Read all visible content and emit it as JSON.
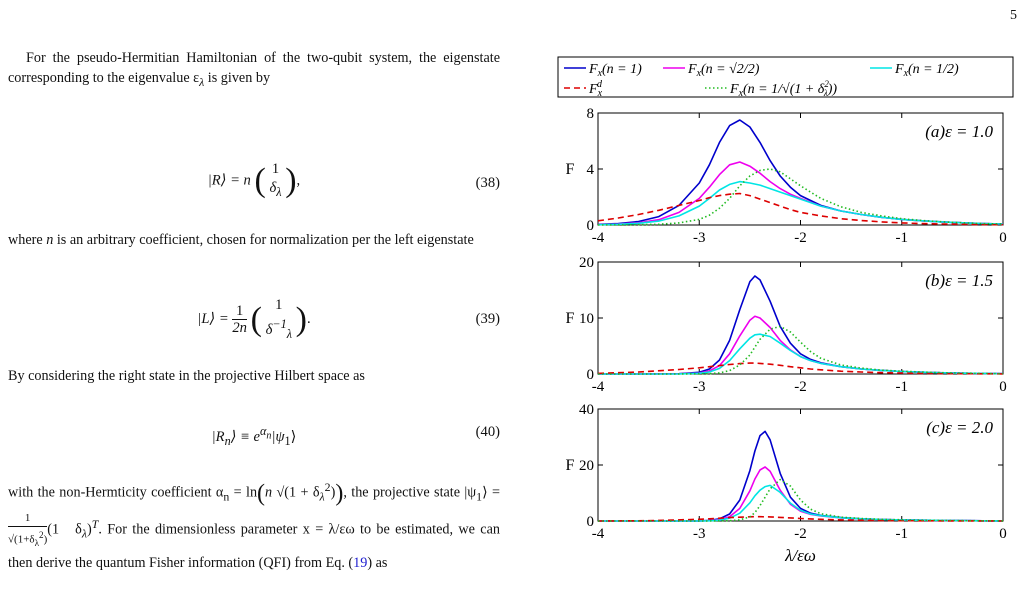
{
  "page_number": "5",
  "text": {
    "para1": "For the pseudo-Hermitian Hamiltonian of the two-qubit system, the eigenstate corresponding to the eigenvalue ε",
    "para1_sub": "λ",
    "para1_end": " is given by",
    "para2": " is an arbitrary coefficient, chosen for normalization per the left eigenstate",
    "para2_n": "n",
    "para2_where": "where ",
    "para3": "By considering the right state in the projective Hilbert space as",
    "para4a": "with the non-Hermticity coefficient α",
    "para4b": ", the projective state |ψ",
    "para4c": "For the dimensionless parameter x = λ/εω to be estimated, we can then derive the quantum Fisher information (QFI) from Eq. (",
    "para4_ref": "19",
    "para4_end": ") as"
  },
  "equations": [
    {
      "number": "(38)",
      "lhs": "|R⟩ = n",
      "vec_top": "1",
      "vec_bottom": "δ",
      "vec_sub": "λ",
      "end": ","
    },
    {
      "number": "(39)",
      "lhs": "|L⟩ =",
      "frac_top": "1",
      "frac_bottom": "2n",
      "vec_top": "1",
      "vec_bottom": "δ",
      "vec_sup": "−1",
      "vec_sub": "λ",
      "end": "."
    },
    {
      "number": "(40)",
      "content": "|R",
      "sub": "n",
      "mid": "⟩ ≡ e",
      "sup": "α",
      "supsub": "n",
      "end": "|ψ",
      "end_sub": "1",
      "close": "⟩"
    }
  ],
  "chart_data": [
    {
      "type": "line",
      "panel_label": "(a)ε = 1.0",
      "xlim": [
        -4,
        0
      ],
      "ylim": [
        0,
        8
      ],
      "xticks": [
        "-4",
        "-3",
        "-2",
        "-1",
        "0"
      ],
      "yticks": [
        "0",
        "4",
        "8"
      ],
      "ylabel": "F",
      "x": [
        -4.0,
        -3.8,
        -3.6,
        -3.4,
        -3.2,
        -3.0,
        -2.9,
        -2.8,
        -2.7,
        -2.6,
        -2.5,
        -2.4,
        -2.3,
        -2.2,
        -2.1,
        -2.0,
        -1.8,
        -1.6,
        -1.4,
        -1.2,
        -1.0,
        -0.8,
        -0.6,
        -0.4,
        -0.2,
        0.0
      ],
      "series": [
        {
          "name": "F_x(n=1)",
          "color": "#0000cc",
          "dash": "solid",
          "values": [
            0.05,
            0.1,
            0.25,
            0.6,
            1.4,
            3.0,
            4.3,
            5.9,
            7.1,
            7.5,
            7.0,
            5.9,
            4.6,
            3.5,
            2.7,
            2.1,
            1.4,
            1.0,
            0.75,
            0.55,
            0.4,
            0.3,
            0.22,
            0.16,
            0.1,
            0.07
          ]
        },
        {
          "name": "F_x(n=√2/2)",
          "color": "#ee00ee",
          "dash": "solid",
          "values": [
            0.03,
            0.07,
            0.16,
            0.38,
            0.9,
            1.9,
            2.7,
            3.6,
            4.3,
            4.5,
            4.2,
            3.7,
            3.1,
            2.6,
            2.2,
            1.9,
            1.35,
            1.0,
            0.75,
            0.55,
            0.4,
            0.3,
            0.22,
            0.16,
            0.1,
            0.07
          ]
        },
        {
          "name": "F_x(n=1/2)",
          "color": "#00e5e5",
          "dash": "solid",
          "values": [
            0.02,
            0.05,
            0.12,
            0.28,
            0.65,
            1.35,
            1.9,
            2.5,
            2.9,
            3.1,
            3.0,
            2.85,
            2.6,
            2.35,
            2.1,
            1.85,
            1.35,
            1.0,
            0.75,
            0.55,
            0.4,
            0.3,
            0.22,
            0.16,
            0.1,
            0.07
          ]
        },
        {
          "name": "F_x^d",
          "color": "#dd0000",
          "dash": "dashed",
          "values": [
            0.3,
            0.5,
            0.75,
            1.05,
            1.4,
            1.75,
            1.95,
            2.1,
            2.2,
            2.25,
            2.1,
            1.85,
            1.6,
            1.35,
            1.1,
            0.9,
            0.65,
            0.45,
            0.32,
            0.22,
            0.15,
            0.1,
            0.07,
            0.05,
            0.03,
            0.02
          ]
        },
        {
          "name": "F_x(n=1/√(1+δλ²))",
          "color": "#22bb22",
          "dash": "dotted",
          "values": [
            0.0,
            0.0,
            0.02,
            0.05,
            0.15,
            0.4,
            0.7,
            1.2,
            1.9,
            2.8,
            3.5,
            3.9,
            4.0,
            3.8,
            3.3,
            2.8,
            1.9,
            1.3,
            0.9,
            0.65,
            0.45,
            0.32,
            0.23,
            0.16,
            0.1,
            0.07
          ]
        }
      ]
    },
    {
      "type": "line",
      "panel_label": "(b)ε = 1.5",
      "xlim": [
        -4,
        0
      ],
      "ylim": [
        0,
        20
      ],
      "xticks": [
        "-4",
        "-3",
        "-2",
        "-1",
        "0"
      ],
      "yticks": [
        "0",
        "10",
        "20"
      ],
      "ylabel": "F",
      "x": [
        -4.0,
        -3.6,
        -3.2,
        -3.0,
        -2.9,
        -2.8,
        -2.7,
        -2.6,
        -2.5,
        -2.45,
        -2.4,
        -2.3,
        -2.2,
        -2.1,
        -2.0,
        -1.9,
        -1.8,
        -1.6,
        -1.4,
        -1.2,
        -1.0,
        -0.8,
        -0.6,
        -0.4,
        -0.2,
        0.0
      ],
      "series": [
        {
          "name": "F_x(n=1)",
          "color": "#0000cc",
          "dash": "solid",
          "values": [
            0.0,
            0.0,
            0.05,
            0.3,
            0.9,
            2.5,
            6.0,
            11.5,
            16.5,
            17.5,
            16.8,
            13.0,
            8.5,
            5.5,
            3.6,
            2.6,
            2.0,
            1.3,
            0.9,
            0.65,
            0.45,
            0.32,
            0.22,
            0.15,
            0.1,
            0.06
          ]
        },
        {
          "name": "F_x(n=√2/2)",
          "color": "#ee00ee",
          "dash": "solid",
          "values": [
            0.0,
            0.0,
            0.03,
            0.18,
            0.55,
            1.5,
            3.6,
            6.8,
            9.6,
            10.3,
            10.0,
            8.3,
            6.0,
            4.3,
            3.1,
            2.4,
            1.9,
            1.3,
            0.9,
            0.65,
            0.45,
            0.32,
            0.22,
            0.15,
            0.1,
            0.06
          ]
        },
        {
          "name": "F_x(n=1/2)",
          "color": "#00e5e5",
          "dash": "solid",
          "values": [
            0.0,
            0.0,
            0.02,
            0.12,
            0.35,
            1.0,
            2.4,
            4.5,
            6.4,
            7.0,
            7.1,
            6.7,
            5.5,
            4.2,
            3.1,
            2.4,
            1.9,
            1.3,
            0.9,
            0.65,
            0.45,
            0.32,
            0.22,
            0.15,
            0.1,
            0.06
          ]
        },
        {
          "name": "F_x^d",
          "color": "#dd0000",
          "dash": "dashed",
          "values": [
            0.1,
            0.35,
            0.8,
            1.1,
            1.3,
            1.5,
            1.7,
            1.85,
            1.95,
            1.95,
            1.9,
            1.75,
            1.55,
            1.3,
            1.1,
            0.9,
            0.75,
            0.5,
            0.35,
            0.24,
            0.16,
            0.11,
            0.07,
            0.05,
            0.03,
            0.02
          ]
        },
        {
          "name": "F_x(n=1/√(1+δλ²))",
          "color": "#22bb22",
          "dash": "dotted",
          "values": [
            0.0,
            0.0,
            0.0,
            0.02,
            0.06,
            0.2,
            0.6,
            1.6,
            3.4,
            4.8,
            6.2,
            8.0,
            8.5,
            7.5,
            5.7,
            4.0,
            2.8,
            1.6,
            1.05,
            0.7,
            0.5,
            0.35,
            0.24,
            0.16,
            0.1,
            0.06
          ]
        }
      ]
    },
    {
      "type": "line",
      "panel_label": "(c)ε = 2.0",
      "xlim": [
        -4,
        0
      ],
      "ylim": [
        0,
        40
      ],
      "xticks": [
        "-4",
        "-3",
        "-2",
        "-1",
        "0"
      ],
      "yticks": [
        "0",
        "20",
        "40"
      ],
      "ylabel": "F",
      "xlabel": "λ/εω",
      "x": [
        -4.0,
        -3.5,
        -3.0,
        -2.9,
        -2.8,
        -2.7,
        -2.6,
        -2.5,
        -2.45,
        -2.4,
        -2.35,
        -2.3,
        -2.2,
        -2.1,
        -2.0,
        -1.9,
        -1.8,
        -1.6,
        -1.4,
        -1.2,
        -1.0,
        -0.8,
        -0.6,
        -0.4,
        -0.2,
        0.0
      ],
      "series": [
        {
          "name": "F_x(n=1)",
          "color": "#0000cc",
          "dash": "solid",
          "values": [
            0.0,
            0.0,
            0.05,
            0.2,
            0.8,
            2.5,
            7.5,
            18.0,
            25.0,
            30.5,
            32.0,
            29.0,
            17.0,
            8.5,
            4.5,
            2.8,
            2.0,
            1.2,
            0.8,
            0.55,
            0.4,
            0.28,
            0.2,
            0.13,
            0.08,
            0.05
          ]
        },
        {
          "name": "F_x(n=√2/2)",
          "color": "#ee00ee",
          "dash": "solid",
          "values": [
            0.0,
            0.0,
            0.03,
            0.12,
            0.5,
            1.5,
            4.5,
            10.8,
            15.0,
            18.2,
            19.3,
            17.8,
            11.0,
            6.0,
            3.5,
            2.4,
            1.8,
            1.1,
            0.75,
            0.55,
            0.4,
            0.28,
            0.2,
            0.13,
            0.08,
            0.05
          ]
        },
        {
          "name": "F_x(n=1/2)",
          "color": "#00e5e5",
          "dash": "solid",
          "values": [
            0.0,
            0.0,
            0.02,
            0.08,
            0.3,
            1.0,
            2.8,
            6.5,
            9.0,
            11.0,
            12.3,
            12.7,
            10.2,
            6.4,
            3.8,
            2.5,
            1.9,
            1.15,
            0.78,
            0.55,
            0.4,
            0.28,
            0.2,
            0.13,
            0.08,
            0.05
          ]
        },
        {
          "name": "F_x^d",
          "color": "#dd0000",
          "dash": "dashed",
          "values": [
            0.0,
            0.1,
            0.6,
            0.8,
            1.0,
            1.2,
            1.35,
            1.5,
            1.55,
            1.55,
            1.5,
            1.45,
            1.3,
            1.1,
            0.9,
            0.75,
            0.6,
            0.4,
            0.27,
            0.18,
            0.12,
            0.08,
            0.05,
            0.03,
            0.02,
            0.01
          ]
        },
        {
          "name": "F_x(n=1/√(1+δλ²))",
          "color": "#22bb22",
          "dash": "dotted",
          "values": [
            0.0,
            0.0,
            0.0,
            0.0,
            0.02,
            0.1,
            0.4,
            1.5,
            3.0,
            5.5,
            8.5,
            11.5,
            14.8,
            12.5,
            7.5,
            4.2,
            2.6,
            1.4,
            0.9,
            0.6,
            0.42,
            0.3,
            0.2,
            0.13,
            0.08,
            0.05
          ]
        }
      ]
    }
  ],
  "legend": [
    {
      "label": "F",
      "sub": "x",
      "rest": "(n = 1)",
      "color": "#0000cc",
      "dash": "solid"
    },
    {
      "label": "F",
      "sub": "x",
      "rest": "(n = √2/2)",
      "color": "#ee00ee",
      "dash": "solid"
    },
    {
      "label": "F",
      "sub": "x",
      "rest": "(n = 1/2)",
      "color": "#00e5e5",
      "dash": "solid"
    },
    {
      "label": "F",
      "sub": "x",
      "sup": "d",
      "rest": "",
      "color": "#dd0000",
      "dash": "dashed"
    },
    {
      "label": "F",
      "sub": "x",
      "rest": "(n = 1/√(1 + δ",
      "rest2": "2",
      "rest2sub": "λ",
      "rest3": "))",
      "color": "#22bb22",
      "dash": "dotted"
    }
  ]
}
